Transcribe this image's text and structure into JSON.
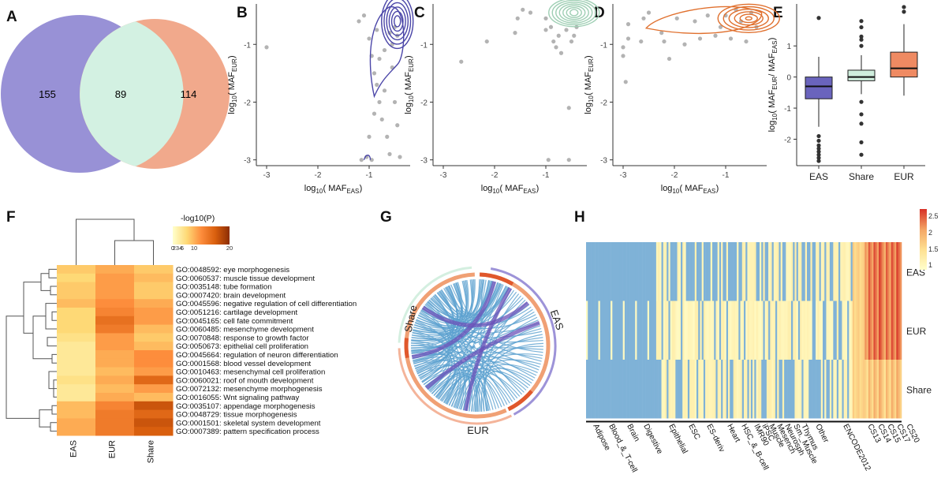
{
  "panel_letters": [
    "A",
    "B",
    "C",
    "D",
    "E",
    "F",
    "G",
    "H"
  ],
  "colors": {
    "eas": "#7b74c7",
    "eur": "#ee9276",
    "share": "#d4efe0",
    "grey": "#b5b5b5",
    "chord": "#6fa6cf"
  },
  "chart_data": [
    {
      "panel": "A",
      "type": "venn",
      "regions": [
        {
          "set": "EAS only",
          "value": "155"
        },
        {
          "set": "Shared",
          "value": "89"
        },
        {
          "set": "EUR only",
          "value": "114"
        }
      ]
    },
    {
      "panel": "B",
      "type": "scatter",
      "xlabel": {
        "pre": "log",
        "sub": "10",
        "mid": " ( MAF",
        "sub2": "EAS",
        "post": " )"
      },
      "ylabel": {
        "pre": "log",
        "sub": "10",
        "mid": " ( MAF",
        "sub2": "EUR",
        "post": " )"
      },
      "xticks": [
        "-3",
        "-2",
        "-1"
      ],
      "yticks": [
        "-1",
        "-2",
        "-3"
      ],
      "xlim": [
        -3.2,
        -0.2
      ],
      "ylim": [
        -3.1,
        -0.3
      ],
      "contour_color": "#4b46a8",
      "points": [
        [
          -3.0,
          -1.05
        ],
        [
          -1.2,
          -0.6
        ],
        [
          -1.1,
          -0.5
        ],
        [
          -1.0,
          -0.9
        ],
        [
          -0.95,
          -1.2
        ],
        [
          -0.9,
          -1.5
        ],
        [
          -0.85,
          -1.7
        ],
        [
          -0.8,
          -2.0
        ],
        [
          -0.75,
          -2.3
        ],
        [
          -0.7,
          -1.1
        ],
        [
          -0.65,
          -2.6
        ],
        [
          -0.6,
          -2.9
        ],
        [
          -0.55,
          -1.4
        ],
        [
          -0.5,
          -2.0
        ],
        [
          -0.45,
          -2.4
        ],
        [
          -0.4,
          -2.95
        ],
        [
          -1.05,
          -2.95
        ],
        [
          -1.15,
          -3.0
        ],
        [
          -0.95,
          -3.0
        ],
        [
          -0.5,
          -0.7
        ],
        [
          -0.85,
          -0.75
        ],
        [
          -0.6,
          -0.8
        ],
        [
          -1.0,
          -2.6
        ],
        [
          -0.7,
          -1.8
        ],
        [
          -0.9,
          -2.2
        ],
        [
          -0.55,
          -1.0
        ],
        [
          -0.8,
          -1.25
        ],
        [
          -0.45,
          -0.85
        ]
      ]
    },
    {
      "panel": "C",
      "type": "scatter",
      "xlabel": {
        "pre": "log",
        "sub": "10",
        "mid": " ( MAF",
        "sub2": "EAS",
        "post": " )"
      },
      "ylabel": {
        "pre": "log",
        "sub": "10",
        "mid": " ( MAF",
        "sub2": "EUR",
        "post": " )"
      },
      "xticks": [
        "-3",
        "-2",
        "-1"
      ],
      "yticks": [
        "-1",
        "-2",
        "-3"
      ],
      "xlim": [
        -3.2,
        -0.2
      ],
      "ylim": [
        -3.1,
        -0.3
      ],
      "contour_color": "#9fcfb4",
      "points": [
        [
          -2.65,
          -1.3
        ],
        [
          -2.15,
          -0.95
        ],
        [
          -1.6,
          -0.8
        ],
        [
          -1.45,
          -0.4
        ],
        [
          -1.3,
          -0.45
        ],
        [
          -1.0,
          -0.75
        ],
        [
          -0.9,
          -0.7
        ],
        [
          -0.85,
          -0.95
        ],
        [
          -0.8,
          -1.05
        ],
        [
          -0.75,
          -0.85
        ],
        [
          -0.7,
          -1.15
        ],
        [
          -0.6,
          -0.75
        ],
        [
          -0.55,
          -2.1
        ],
        [
          -0.5,
          -0.95
        ],
        [
          -0.45,
          -0.85
        ],
        [
          -0.4,
          -0.7
        ],
        [
          -0.95,
          -3.0
        ],
        [
          -0.55,
          -3.0
        ],
        [
          -1.55,
          -0.55
        ],
        [
          -1.0,
          -0.55
        ]
      ]
    },
    {
      "panel": "D",
      "type": "scatter",
      "xlabel": {
        "pre": "log",
        "sub": "10",
        "mid": " ( MAF",
        "sub2": "EAS",
        "post": " )"
      },
      "ylabel": {
        "pre": "log",
        "sub": "10",
        "mid": " ( MAF",
        "sub2": "EUR",
        "post": " )"
      },
      "xticks": [
        "-3",
        "-2",
        "-1"
      ],
      "yticks": [
        "-1",
        "-2",
        "-3"
      ],
      "xlim": [
        -3.2,
        -0.2
      ],
      "ylim": [
        -3.1,
        -0.3
      ],
      "contour_color": "#e0702e",
      "points": [
        [
          -3.0,
          -1.05
        ],
        [
          -3.0,
          -1.2
        ],
        [
          -2.95,
          -1.65
        ],
        [
          -2.9,
          -0.9
        ],
        [
          -2.9,
          -0.65
        ],
        [
          -2.6,
          -0.55
        ],
        [
          -2.5,
          -0.45
        ],
        [
          -2.25,
          -0.8
        ],
        [
          -2.2,
          -0.95
        ],
        [
          -2.1,
          -1.25
        ],
        [
          -1.95,
          -0.55
        ],
        [
          -1.8,
          -1.0
        ],
        [
          -1.6,
          -0.6
        ],
        [
          -1.5,
          -0.9
        ],
        [
          -1.35,
          -0.5
        ],
        [
          -1.2,
          -0.85
        ],
        [
          -1.1,
          -0.7
        ],
        [
          -1.0,
          -0.5
        ],
        [
          -0.9,
          -0.9
        ],
        [
          -0.8,
          -0.4
        ],
        [
          -0.7,
          -0.6
        ],
        [
          -0.6,
          -0.95
        ],
        [
          -0.5,
          -0.45
        ],
        [
          -0.4,
          -0.7
        ],
        [
          -2.65,
          -0.95
        ]
      ]
    },
    {
      "panel": "E",
      "type": "box",
      "categories": [
        "EAS",
        "Share",
        "EUR"
      ],
      "ylabel": {
        "pre": "log",
        "sub": "10",
        "mid": " ( MAF",
        "sub2": "EUR",
        "mid2": " / MAF",
        "sub3": "EAS",
        "post": " )"
      },
      "yticks": [
        "1",
        "0",
        "-1",
        "-2"
      ],
      "ylim": [
        -2.85,
        2.35
      ],
      "boxes": [
        {
          "name": "EAS",
          "q1": -0.7,
          "median": -0.3,
          "q3": 0.0,
          "lo": -1.6,
          "hi": 0.65,
          "color": "#6a64bd",
          "outliers": [
            1.9,
            -1.9,
            -2.05,
            -2.2,
            -2.3,
            -2.4,
            -2.5,
            -2.6,
            -2.7
          ]
        },
        {
          "name": "Share",
          "q1": -0.12,
          "median": 0.0,
          "q3": 0.22,
          "lo": -0.55,
          "hi": 0.7,
          "color": "#cfeedd",
          "outliers": [
            1.8,
            1.6,
            1.3,
            1.2,
            1.0,
            -0.8,
            -1.2,
            -1.5,
            -2.1,
            -2.5
          ]
        },
        {
          "name": "EUR",
          "q1": 0.0,
          "median": 0.28,
          "q3": 0.8,
          "lo": -0.6,
          "hi": 1.7,
          "color": "#ef8a62",
          "outliers": [
            2.25,
            2.1
          ]
        }
      ]
    },
    {
      "panel": "F",
      "type": "heatmap",
      "legend_title": "-log10(P)",
      "legend_ticks": [
        "0",
        "234",
        "6",
        "10",
        "20"
      ],
      "columns": [
        "EAS",
        "EUR",
        "Share"
      ],
      "rows": [
        {
          "label": "GO:0048592: eye morphogenesis",
          "values": [
            6,
            8,
            6
          ]
        },
        {
          "label": "GO:0060537: muscle tissue development",
          "values": [
            5,
            9,
            7
          ]
        },
        {
          "label": "GO:0035148: tube formation",
          "values": [
            6,
            9,
            6
          ]
        },
        {
          "label": "GO:0007420: brain development",
          "values": [
            6,
            9,
            6
          ]
        },
        {
          "label": "GO:0045596: negative regulation of cell differentiation",
          "values": [
            7,
            10,
            8
          ]
        },
        {
          "label": "GO:0051216: cartilage development",
          "values": [
            5,
            11,
            9
          ]
        },
        {
          "label": "GO:0045165: cell fate commitment",
          "values": [
            5,
            13,
            9
          ]
        },
        {
          "label": "GO:0060485: mesenchyme development",
          "values": [
            5,
            12,
            7
          ]
        },
        {
          "label": "GO:0070848: response to growth factor",
          "values": [
            4,
            9,
            6
          ]
        },
        {
          "label": "GO:0050673: epithelial cell proliferation",
          "values": [
            3,
            9,
            7
          ]
        },
        {
          "label": "GO:0045664: regulation of neuron differentiation",
          "values": [
            3,
            8,
            10
          ]
        },
        {
          "label": "GO:0001568: blood vessel development",
          "values": [
            3,
            8,
            10
          ]
        },
        {
          "label": "GO:0010463: mesenchymal cell proliferation",
          "values": [
            3,
            7,
            9
          ]
        },
        {
          "label": "GO:0060021: roof of mouth development",
          "values": [
            4,
            8,
            14
          ]
        },
        {
          "label": "GO:0072132: mesenchyme morphogenesis",
          "values": [
            3,
            7,
            9
          ]
        },
        {
          "label": "GO:0016055: Wnt signaling pathway",
          "values": [
            3,
            8,
            7
          ]
        },
        {
          "label": "GO:0035107: appendage morphogenesis",
          "values": [
            7,
            11,
            16
          ]
        },
        {
          "label": "GO:0048729: tissue morphogenesis",
          "values": [
            7,
            12,
            14
          ]
        },
        {
          "label": "GO:0001501: skeletal system development",
          "values": [
            8,
            12,
            16
          ]
        },
        {
          "label": "GO:0007389: pattern specification process",
          "values": [
            8,
            12,
            15
          ]
        }
      ]
    },
    {
      "panel": "G",
      "type": "chord",
      "segments": [
        "Share",
        "EAS",
        "EUR"
      ]
    },
    {
      "panel": "H",
      "type": "heatmap",
      "rows": [
        "EAS",
        "EUR",
        "Share"
      ],
      "legend_ticks": [
        "2.5",
        "2",
        "1.5",
        "1"
      ],
      "legend_range": [
        1,
        2.7
      ],
      "columns": [
        "Adipose",
        "Blood_&_T-cell",
        "Brain",
        "Digestive",
        "Epithelial",
        "ESC",
        "ES-deriv",
        "Heart",
        "HSC_&_B-cell",
        "IMR90",
        "iPSC",
        "Muscle",
        "Mesench",
        "Neurosph",
        "Sm._Muscle",
        "Thymus",
        "Other",
        "ENCODE2012",
        "CS13",
        "CS14",
        "CS15",
        "CS17",
        "CS20"
      ]
    }
  ]
}
